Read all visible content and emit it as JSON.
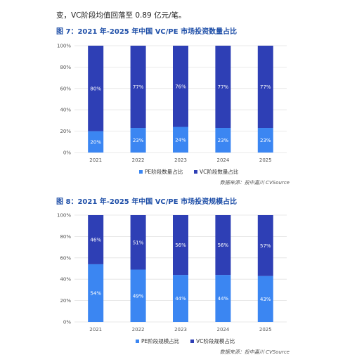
{
  "intro_text": "变，VC阶段均值回落至 0.89 亿元/笔。",
  "figures": [
    {
      "title": "图 7：2021 年-2025 年中国 VC/PE 市场投资数量占比",
      "source": "数据来源：投中嘉川 CVSource",
      "chart_data": {
        "type": "bar",
        "stacked": true,
        "categories": [
          "2021",
          "2022",
          "2023",
          "2024",
          "2025"
        ],
        "series": [
          {
            "name": "PE阶段数量占比",
            "values": [
              20,
              23,
              24,
              23,
              23
            ],
            "labels": [
              "20%",
              "23%",
              "24%",
              "23%",
              "23%"
            ],
            "color": "#3b86f2"
          },
          {
            "name": "VC阶段数量占比",
            "values": [
              80,
              77,
              76,
              77,
              77
            ],
            "labels": [
              "80%",
              "77%",
              "76%",
              "77%",
              "77%"
            ],
            "color": "#2e3fb5"
          }
        ],
        "ylim": [
          0,
          100
        ],
        "yticks": [
          "0%",
          "20%",
          "40%",
          "60%",
          "80%",
          "100%"
        ],
        "grid": true,
        "legend": "bottom"
      }
    },
    {
      "title": "图 8：2021 年-2025 年中国 VC/PE 市场投资规模占比",
      "source": "数据来源：投中嘉川 CVSource",
      "chart_data": {
        "type": "bar",
        "stacked": true,
        "categories": [
          "2021",
          "2022",
          "2023",
          "2024",
          "2025"
        ],
        "series": [
          {
            "name": "PE阶段规模占比",
            "values": [
              54,
              49,
              44,
              44,
              43
            ],
            "labels": [
              "54%",
              "49%",
              "44%",
              "44%",
              "43%"
            ],
            "color": "#3b86f2"
          },
          {
            "name": "VC阶段规模占比",
            "values": [
              46,
              51,
              56,
              56,
              57
            ],
            "labels": [
              "46%",
              "51%",
              "56%",
              "56%",
              "57%"
            ],
            "color": "#2e3fb5"
          }
        ],
        "ylim": [
          0,
          100
        ],
        "yticks": [
          "0%",
          "20%",
          "40%",
          "60%",
          "80%",
          "100%"
        ],
        "grid": true,
        "legend": "bottom"
      }
    }
  ]
}
